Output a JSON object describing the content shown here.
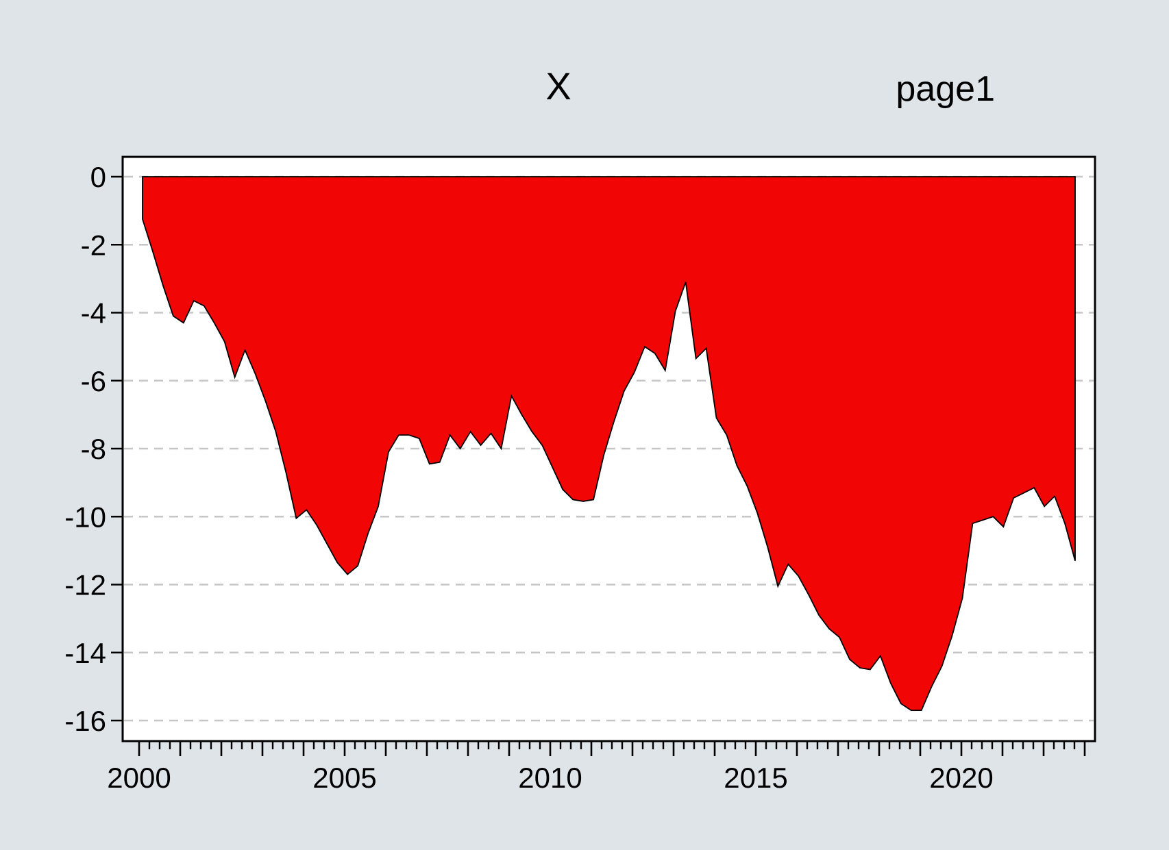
{
  "window": {
    "title": "X",
    "page_label": "page1"
  },
  "colors": {
    "background": "#dfe4e8",
    "plot_background": "#ffffff",
    "area_fill": "#f20505",
    "area_outline": "#000000",
    "grid": "#c6c6c6",
    "axis": "#000000",
    "text": "#000000"
  },
  "chart_data": {
    "type": "area",
    "title": "X",
    "page_label": "page1",
    "series_name": "X",
    "frequency": "quarterly",
    "start_period": "2000Q1",
    "end_period": "2022Q4",
    "x": [
      2000.0,
      2000.25,
      2000.5,
      2000.75,
      2001.0,
      2001.25,
      2001.5,
      2001.75,
      2002.0,
      2002.25,
      2002.5,
      2002.75,
      2003.0,
      2003.25,
      2003.5,
      2003.75,
      2004.0,
      2004.25,
      2004.5,
      2004.75,
      2005.0,
      2005.25,
      2005.5,
      2005.75,
      2006.0,
      2006.25,
      2006.5,
      2006.75,
      2007.0,
      2007.25,
      2007.5,
      2007.75,
      2008.0,
      2008.25,
      2008.5,
      2008.75,
      2009.0,
      2009.25,
      2009.5,
      2009.75,
      2010.0,
      2010.25,
      2010.5,
      2010.75,
      2011.0,
      2011.25,
      2011.5,
      2011.75,
      2012.0,
      2012.25,
      2012.5,
      2012.75,
      2013.0,
      2013.25,
      2013.5,
      2013.75,
      2014.0,
      2014.25,
      2014.5,
      2014.75,
      2015.0,
      2015.25,
      2015.5,
      2015.75,
      2016.0,
      2016.25,
      2016.5,
      2016.75,
      2017.0,
      2017.25,
      2017.5,
      2017.75,
      2018.0,
      2018.25,
      2018.5,
      2018.75,
      2019.0,
      2019.25,
      2019.5,
      2019.75,
      2020.0,
      2020.25,
      2020.5,
      2020.75,
      2021.0,
      2021.25,
      2021.5,
      2021.75,
      2022.0,
      2022.25,
      2022.5,
      2022.75
    ],
    "values": [
      -1.25,
      -2.2,
      -3.2,
      -4.1,
      -4.3,
      -3.65,
      -3.8,
      -4.3,
      -4.85,
      -5.9,
      -5.1,
      -5.8,
      -6.6,
      -7.5,
      -8.7,
      -10.05,
      -9.8,
      -10.25,
      -10.8,
      -11.35,
      -11.7,
      -11.45,
      -10.5,
      -9.7,
      -8.1,
      -7.6,
      -7.6,
      -7.7,
      -8.45,
      -8.4,
      -7.6,
      -8.0,
      -7.5,
      -7.9,
      -7.55,
      -8.0,
      -6.45,
      -7.0,
      -7.5,
      -7.9,
      -8.55,
      -9.2,
      -9.5,
      -9.55,
      -9.5,
      -8.2,
      -7.2,
      -6.3,
      -5.75,
      -5.0,
      -5.2,
      -5.7,
      -3.95,
      -3.1,
      -5.35,
      -5.05,
      -7.1,
      -7.6,
      -8.5,
      -9.1,
      -9.9,
      -10.9,
      -12.05,
      -11.4,
      -11.75,
      -12.3,
      -12.9,
      -13.3,
      -13.55,
      -14.2,
      -14.45,
      -14.5,
      -14.1,
      -14.9,
      -15.5,
      -15.7,
      -15.7,
      -15.0,
      -14.4,
      -13.5,
      -12.4,
      -10.2,
      -10.1,
      -10.0,
      -10.3,
      -9.45,
      -9.3,
      -9.15,
      -9.7,
      -9.4,
      -10.2,
      -11.3
    ],
    "xlabel": "",
    "ylabel": "",
    "ylim": [
      -16.6,
      0.6
    ],
    "yticks": [
      0,
      -2,
      -4,
      -6,
      -8,
      -10,
      -12,
      -14,
      -16
    ],
    "x_axis_start_year": 1999.6,
    "x_axis_end_year": 2023.25,
    "year_ticks_from": 2000,
    "year_ticks_to": 2023,
    "labeled_year_ticks": [
      2000,
      2005,
      2010,
      2015,
      2020
    ],
    "minor_ticks": "quarterly",
    "grid": "horizontal-dashed",
    "legend": "none"
  }
}
